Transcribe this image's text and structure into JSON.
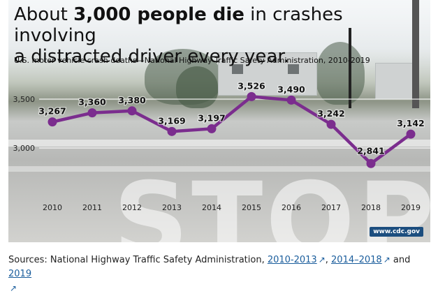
{
  "headline": {
    "prefix": "About ",
    "bold": "3,000 people die",
    "suffix": " in crashes involving",
    "line2": "a distracted driver every year."
  },
  "subtitle": "U.S. motor vehicle crash deaths—National Highway Traffic Safety Administration, 2010-2019",
  "watermark": "www.cdc.gov",
  "colors": {
    "line": "#7b2d8e",
    "marker": "#7b2d8e"
  },
  "chart_data": {
    "type": "line",
    "title": "About 3,000 people die in crashes involving a distracted driver every year.",
    "subtitle": "U.S. motor vehicle crash deaths—National Highway Traffic Safety Administration, 2010-2019",
    "x": [
      "2010",
      "2011",
      "2012",
      "2013",
      "2014",
      "2015",
      "2016",
      "2017",
      "2018",
      "2019"
    ],
    "series": [
      {
        "values": [
          3267,
          3360,
          3380,
          3169,
          3197,
          3526,
          3490,
          3242,
          2841,
          3142
        ],
        "labels": [
          "3,267",
          "3,360",
          "3,380",
          "3,169",
          "3,197",
          "3,526",
          "3,490",
          "3,242",
          "2,841",
          "3,142"
        ]
      }
    ],
    "yticks": [
      3000,
      3500
    ],
    "ytick_labels": [
      "3,000",
      "3,500"
    ],
    "ylim": [
      2500,
      3500
    ],
    "grid": true,
    "legend": "none"
  },
  "sources": {
    "prefix": "Sources: National Highway Traffic Safety Administration, ",
    "link1": "2010-2013",
    "sep1": ", ",
    "link2": "2014–2018",
    "sep2": " and ",
    "link3": "2019",
    "icon": "external-link-icon"
  }
}
